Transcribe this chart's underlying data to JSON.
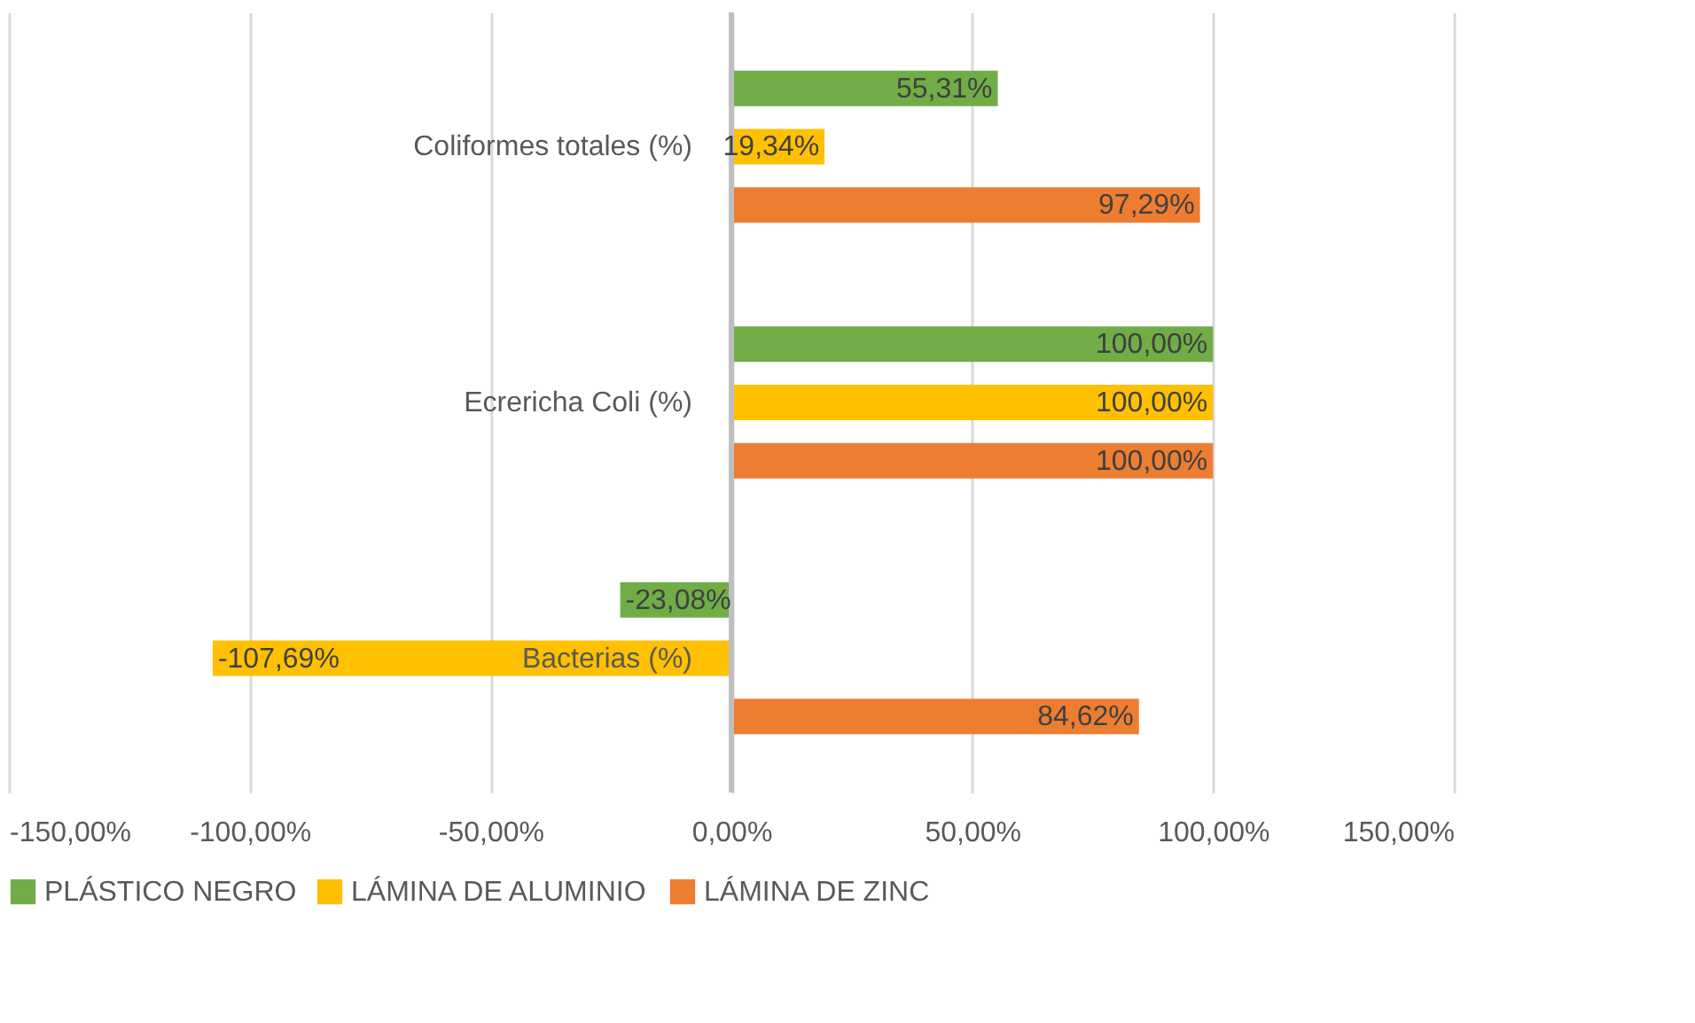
{
  "chart_data": {
    "type": "bar",
    "orientation": "horizontal",
    "categories": [
      "Coliformes totales (%)",
      "Ecrericha Coli (%)",
      "Bacterias (%)"
    ],
    "series": [
      {
        "name": "PLÁSTICO NEGRO",
        "color": "#70ad47",
        "values": [
          55.31,
          100.0,
          -23.08
        ],
        "value_labels": [
          "55,31%",
          "100,00%",
          "-23,08%"
        ]
      },
      {
        "name": "LÁMINA DE ALUMINIO",
        "color": "#ffc000",
        "values": [
          19.34,
          100.0,
          -107.69
        ],
        "value_labels": [
          "19,34%",
          "100,00%",
          "-107,69%"
        ]
      },
      {
        "name": "LÁMINA DE ZINC",
        "color": "#ed7d31",
        "values": [
          97.29,
          100.0,
          84.62
        ],
        "value_labels": [
          "97,29%",
          "100,00%",
          "84,62%"
        ]
      }
    ],
    "xlim": [
      -150,
      150
    ],
    "xticks": [
      {
        "value": -150,
        "label": "-150,00%"
      },
      {
        "value": -100,
        "label": "-100,00%"
      },
      {
        "value": -50,
        "label": "-50,00%"
      },
      {
        "value": 0,
        "label": "0,00%"
      },
      {
        "value": 50,
        "label": "50,00%"
      },
      {
        "value": 100,
        "label": "100,00%"
      },
      {
        "value": 150,
        "label": "150,00%"
      }
    ],
    "grid": "x",
    "legend": "bottom"
  }
}
